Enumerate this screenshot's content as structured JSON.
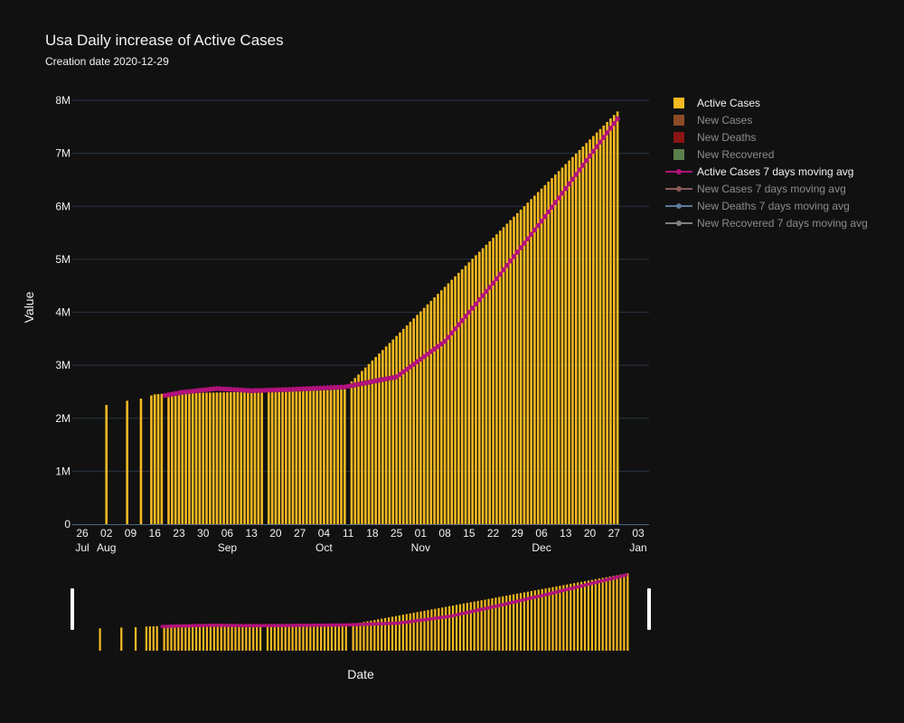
{
  "chart_data": {
    "type": "bar",
    "title": "Usa  Daily increase of Active Cases",
    "subtitle": "Creation date 2020-12-29",
    "xlabel": "Date",
    "ylabel": "Value",
    "x_range": [
      "2020-07-26",
      "2021-01-03"
    ],
    "ylim": [
      0,
      8000000
    ],
    "y_ticks": [
      0,
      1000000,
      2000000,
      3000000,
      4000000,
      5000000,
      6000000,
      7000000,
      8000000
    ],
    "y_tick_labels": [
      "0",
      "1M",
      "2M",
      "3M",
      "4M",
      "5M",
      "6M",
      "7M",
      "8M"
    ],
    "x_ticks": [
      {
        "date": "2020-07-26",
        "day": "26",
        "month": "Jul"
      },
      {
        "date": "2020-08-02",
        "day": "02",
        "month": "Aug"
      },
      {
        "date": "2020-08-09",
        "day": "09",
        "month": ""
      },
      {
        "date": "2020-08-16",
        "day": "16",
        "month": ""
      },
      {
        "date": "2020-08-23",
        "day": "23",
        "month": ""
      },
      {
        "date": "2020-08-30",
        "day": "30",
        "month": ""
      },
      {
        "date": "2020-09-06",
        "day": "06",
        "month": "Sep"
      },
      {
        "date": "2020-09-13",
        "day": "13",
        "month": ""
      },
      {
        "date": "2020-09-20",
        "day": "20",
        "month": ""
      },
      {
        "date": "2020-09-27",
        "day": "27",
        "month": ""
      },
      {
        "date": "2020-10-04",
        "day": "04",
        "month": "Oct"
      },
      {
        "date": "2020-10-11",
        "day": "11",
        "month": ""
      },
      {
        "date": "2020-10-18",
        "day": "18",
        "month": ""
      },
      {
        "date": "2020-10-25",
        "day": "25",
        "month": ""
      },
      {
        "date": "2020-11-01",
        "day": "01",
        "month": "Nov"
      },
      {
        "date": "2020-11-08",
        "day": "08",
        "month": ""
      },
      {
        "date": "2020-11-15",
        "day": "15",
        "month": ""
      },
      {
        "date": "2020-11-22",
        "day": "22",
        "month": ""
      },
      {
        "date": "2020-11-29",
        "day": "29",
        "month": ""
      },
      {
        "date": "2020-12-06",
        "day": "06",
        "month": "Dec"
      },
      {
        "date": "2020-12-13",
        "day": "13",
        "month": ""
      },
      {
        "date": "2020-12-20",
        "day": "20",
        "month": ""
      },
      {
        "date": "2020-12-27",
        "day": "27",
        "month": ""
      },
      {
        "date": "2021-01-03",
        "day": "03",
        "month": "Jan"
      }
    ],
    "grid": true,
    "legend_position": "right",
    "range_slider": true,
    "series": [
      {
        "name": "Active Cases",
        "kind": "bar",
        "color": "#f5b921",
        "visible": true,
        "points": [
          [
            "2020-08-02",
            2250000
          ],
          [
            "2020-08-08",
            2330000
          ],
          [
            "2020-08-12",
            2370000
          ],
          [
            "2020-08-16",
            2450000
          ],
          [
            "2020-08-20",
            2470000
          ],
          [
            "2020-09-16",
            2500000
          ],
          [
            "2020-10-10",
            2560000
          ],
          [
            "2020-12-28",
            7790000
          ]
        ]
      },
      {
        "name": "New Cases",
        "kind": "bar",
        "color": "#8c4b26",
        "visible": false
      },
      {
        "name": "New Deaths",
        "kind": "bar",
        "color": "#8b1414",
        "visible": false
      },
      {
        "name": "New Recovered",
        "kind": "bar",
        "color": "#5b7f4c",
        "visible": false
      },
      {
        "name": "Active Cases 7 days moving avg",
        "kind": "line",
        "color": "#b0127b",
        "visible": true,
        "points": [
          [
            "2020-08-19",
            2430000
          ],
          [
            "2020-08-24",
            2490000
          ],
          [
            "2020-09-03",
            2560000
          ],
          [
            "2020-09-13",
            2520000
          ],
          [
            "2020-09-23",
            2540000
          ],
          [
            "2020-10-10",
            2590000
          ],
          [
            "2020-10-25",
            2780000
          ],
          [
            "2020-11-08",
            3450000
          ],
          [
            "2020-11-22",
            4550000
          ],
          [
            "2020-12-06",
            5720000
          ],
          [
            "2020-12-20",
            6950000
          ],
          [
            "2020-12-28",
            7650000
          ]
        ]
      },
      {
        "name": "New Cases 7 days moving avg",
        "kind": "line",
        "color": "#8a5a5a",
        "visible": false
      },
      {
        "name": "New Deaths 7 days moving avg",
        "kind": "line",
        "color": "#5b7a99",
        "visible": false
      },
      {
        "name": "New Recovered 7 days moving avg",
        "kind": "line",
        "color": "#808080",
        "visible": false
      }
    ]
  },
  "colors": {
    "background": "#111111",
    "text": "#f2f2f2",
    "muted_text": "#8c8c8c",
    "grid": "#283442",
    "slider_handle": "#ffffff"
  }
}
